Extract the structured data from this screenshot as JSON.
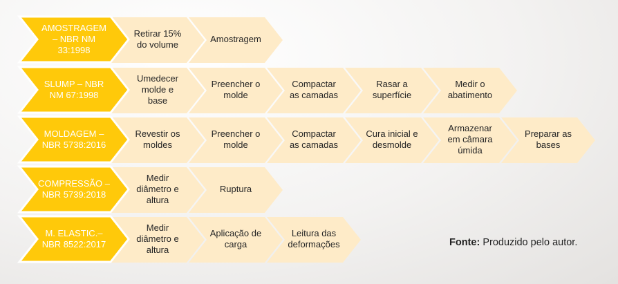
{
  "colors": {
    "main": "#FFC90A",
    "step": "#FEEBC8",
    "main_text": "#FFFFFF",
    "step_text": "#262626"
  },
  "rows": [
    {
      "title": "AMOSTRAGEM\n– NBR NM\n33:1998",
      "steps": [
        "Retirar 15%\ndo volume",
        "Amostragem"
      ]
    },
    {
      "title": "SLUMP – NBR\nNM  67:1998",
      "steps": [
        "Umedecer\nmolde e\nbase",
        "Preencher o\nmolde",
        "Compactar\nas camadas",
        "Rasar a\nsuperfície",
        "Medir o\nabatimento"
      ]
    },
    {
      "title": "MOLDAGEM –\nNBR 5738:2016",
      "steps": [
        "Revestir os\nmoldes",
        "Preencher o\nmolde",
        "Compactar\nas camadas",
        "Cura inicial e\ndesmolde",
        "Armazenar\nem câmara\númida",
        "Preparar as\nbases"
      ]
    },
    {
      "title": "COMPRESSÃO –\nNBR 5739:2018",
      "steps": [
        "Medir\ndiâmetro e\naltura",
        "Ruptura"
      ]
    },
    {
      "title": "M. ELASTIC.–\nNBR 8522:2017",
      "steps": [
        "Medir\ndiâmetro e\naltura",
        "Aplicação de\ncarga",
        "Leitura das\ndeformações"
      ]
    }
  ],
  "footer": {
    "label": "Fonte:",
    "text": " Produzido pelo autor."
  }
}
